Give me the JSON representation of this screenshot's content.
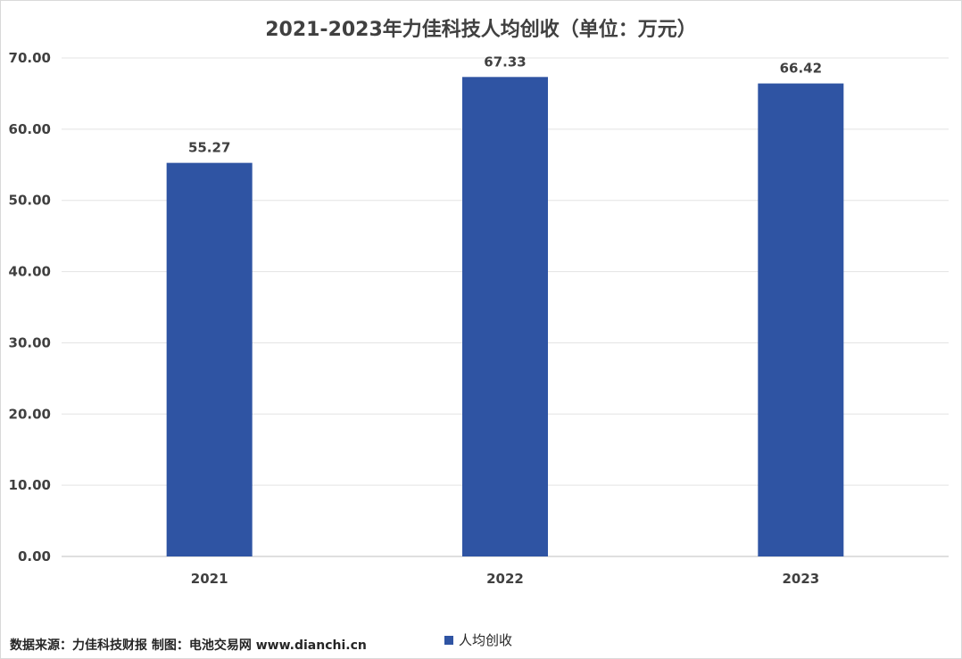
{
  "chart_data": {
    "type": "bar",
    "title": "2021-2023年力佳科技人均创收（单位：万元）",
    "categories": [
      "2021",
      "2022",
      "2023"
    ],
    "series": [
      {
        "name": "人均创收",
        "values": [
          55.27,
          67.33,
          66.42
        ],
        "color": "#2F54A3"
      }
    ],
    "data_labels": [
      "55.27",
      "67.33",
      "66.42"
    ],
    "ylim": [
      0,
      70
    ],
    "yticks": [
      "0.00",
      "10.00",
      "20.00",
      "30.00",
      "40.00",
      "50.00",
      "60.00",
      "70.00"
    ],
    "grid": true,
    "legend_position": "bottom-center"
  },
  "source_note": "数据来源：力佳科技财报 制图：电池交易网 www.dianchi.cn"
}
